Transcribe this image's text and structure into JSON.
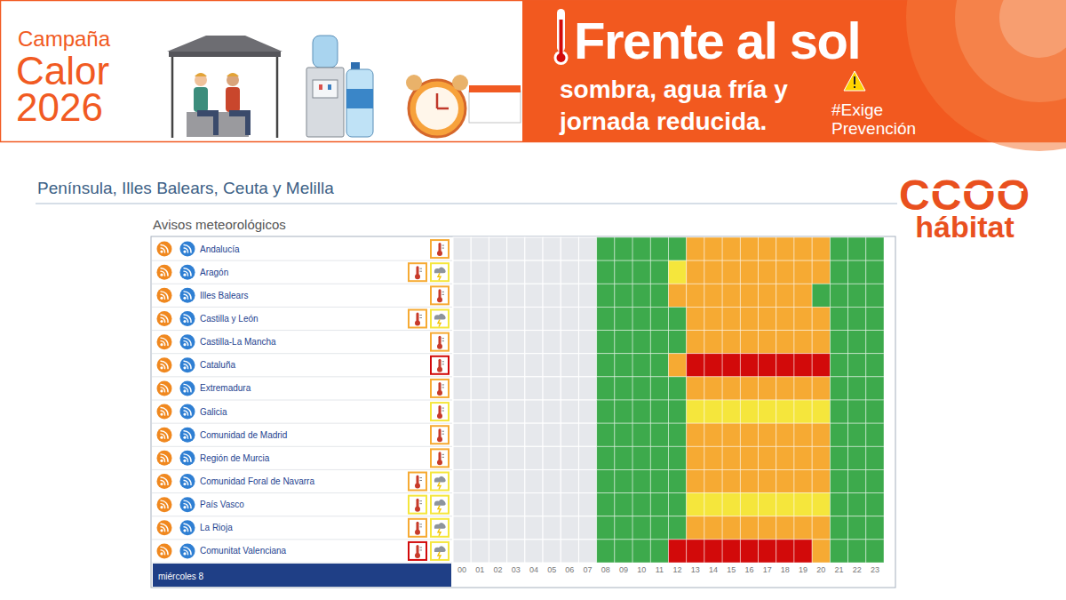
{
  "banner": {
    "campaign": [
      "Campaña",
      "Calor",
      "2026"
    ],
    "headline": "Frente al sol",
    "lines": [
      "sombra, agua fría y",
      "jornada reducida."
    ],
    "hashtag": [
      "#Exige",
      "Prevención"
    ]
  },
  "logo": {
    "top": "CCOO",
    "bottom": "hábitat"
  },
  "header": "Península, Illes Balears, Ceuta y Melilla",
  "chart_data": {
    "type": "heatmap",
    "title": "Avisos meteorológicos",
    "day_label": "miércoles 8",
    "categories": [
      "00",
      "01",
      "02",
      "03",
      "04",
      "05",
      "06",
      "07",
      "08",
      "09",
      "10",
      "11",
      "12",
      "13",
      "14",
      "15",
      "16",
      "17",
      "18",
      "19",
      "20",
      "21",
      "22",
      "23"
    ],
    "colors": [
      "#3daa4c",
      "#f5e63c",
      "#f6aa33",
      "#d20a0a"
    ],
    "rows": [
      {
        "name": "Andalucía",
        "heat_level": 2,
        "storm_level": null,
        "values": [
          null,
          null,
          null,
          null,
          null,
          null,
          null,
          null,
          0,
          0,
          0,
          0,
          0,
          2,
          2,
          2,
          2,
          2,
          2,
          2,
          2,
          0,
          0,
          0
        ]
      },
      {
        "name": "Aragón",
        "heat_level": 2,
        "storm_level": 1,
        "values": [
          null,
          null,
          null,
          null,
          null,
          null,
          null,
          null,
          0,
          0,
          0,
          0,
          1,
          2,
          2,
          2,
          2,
          2,
          2,
          2,
          2,
          0,
          0,
          0
        ]
      },
      {
        "name": "Illes Balears",
        "heat_level": 2,
        "storm_level": null,
        "values": [
          null,
          null,
          null,
          null,
          null,
          null,
          null,
          null,
          0,
          0,
          0,
          0,
          2,
          2,
          2,
          2,
          2,
          2,
          2,
          2,
          0,
          0,
          0,
          0
        ]
      },
      {
        "name": "Castilla y León",
        "heat_level": 2,
        "storm_level": 1,
        "values": [
          null,
          null,
          null,
          null,
          null,
          null,
          null,
          null,
          0,
          0,
          0,
          0,
          0,
          2,
          2,
          2,
          2,
          2,
          2,
          2,
          2,
          0,
          0,
          0
        ]
      },
      {
        "name": "Castilla-La Mancha",
        "heat_level": 2,
        "storm_level": null,
        "values": [
          null,
          null,
          null,
          null,
          null,
          null,
          null,
          null,
          0,
          0,
          0,
          0,
          0,
          2,
          2,
          2,
          2,
          2,
          2,
          2,
          2,
          0,
          0,
          0
        ]
      },
      {
        "name": "Cataluña",
        "heat_level": 3,
        "storm_level": null,
        "values": [
          null,
          null,
          null,
          null,
          null,
          null,
          null,
          null,
          0,
          0,
          0,
          0,
          2,
          3,
          3,
          3,
          3,
          3,
          3,
          3,
          3,
          0,
          0,
          0
        ]
      },
      {
        "name": "Extremadura",
        "heat_level": 2,
        "storm_level": null,
        "values": [
          null,
          null,
          null,
          null,
          null,
          null,
          null,
          null,
          0,
          0,
          0,
          0,
          0,
          2,
          2,
          2,
          2,
          2,
          2,
          2,
          2,
          0,
          0,
          0
        ]
      },
      {
        "name": "Galicia",
        "heat_level": 1,
        "storm_level": null,
        "values": [
          null,
          null,
          null,
          null,
          null,
          null,
          null,
          null,
          0,
          0,
          0,
          0,
          0,
          1,
          1,
          1,
          1,
          1,
          1,
          1,
          1,
          0,
          0,
          0
        ]
      },
      {
        "name": "Comunidad de Madrid",
        "heat_level": 2,
        "storm_level": null,
        "values": [
          null,
          null,
          null,
          null,
          null,
          null,
          null,
          null,
          0,
          0,
          0,
          0,
          0,
          2,
          2,
          2,
          2,
          2,
          2,
          2,
          2,
          0,
          0,
          0
        ]
      },
      {
        "name": "Región de Murcia",
        "heat_level": 2,
        "storm_level": null,
        "values": [
          null,
          null,
          null,
          null,
          null,
          null,
          null,
          null,
          0,
          0,
          0,
          0,
          0,
          2,
          2,
          2,
          2,
          2,
          2,
          2,
          2,
          0,
          0,
          0
        ]
      },
      {
        "name": "Comunidad Foral de Navarra",
        "heat_level": 2,
        "storm_level": 1,
        "values": [
          null,
          null,
          null,
          null,
          null,
          null,
          null,
          null,
          0,
          0,
          0,
          0,
          0,
          2,
          2,
          2,
          2,
          2,
          2,
          2,
          2,
          0,
          0,
          0
        ]
      },
      {
        "name": "País Vasco",
        "heat_level": 1,
        "storm_level": 1,
        "values": [
          null,
          null,
          null,
          null,
          null,
          null,
          null,
          null,
          0,
          0,
          0,
          0,
          0,
          1,
          1,
          1,
          1,
          1,
          1,
          1,
          1,
          0,
          0,
          0
        ]
      },
      {
        "name": "La Rioja",
        "heat_level": 2,
        "storm_level": 1,
        "values": [
          null,
          null,
          null,
          null,
          null,
          null,
          null,
          null,
          0,
          0,
          0,
          0,
          0,
          2,
          2,
          2,
          2,
          2,
          2,
          2,
          2,
          0,
          0,
          0
        ]
      },
      {
        "name": "Comunitat Valenciana",
        "heat_level": 3,
        "storm_level": 1,
        "values": [
          null,
          null,
          null,
          null,
          null,
          null,
          null,
          null,
          0,
          0,
          0,
          0,
          3,
          3,
          3,
          3,
          3,
          3,
          3,
          3,
          2,
          0,
          0,
          0
        ]
      }
    ]
  }
}
